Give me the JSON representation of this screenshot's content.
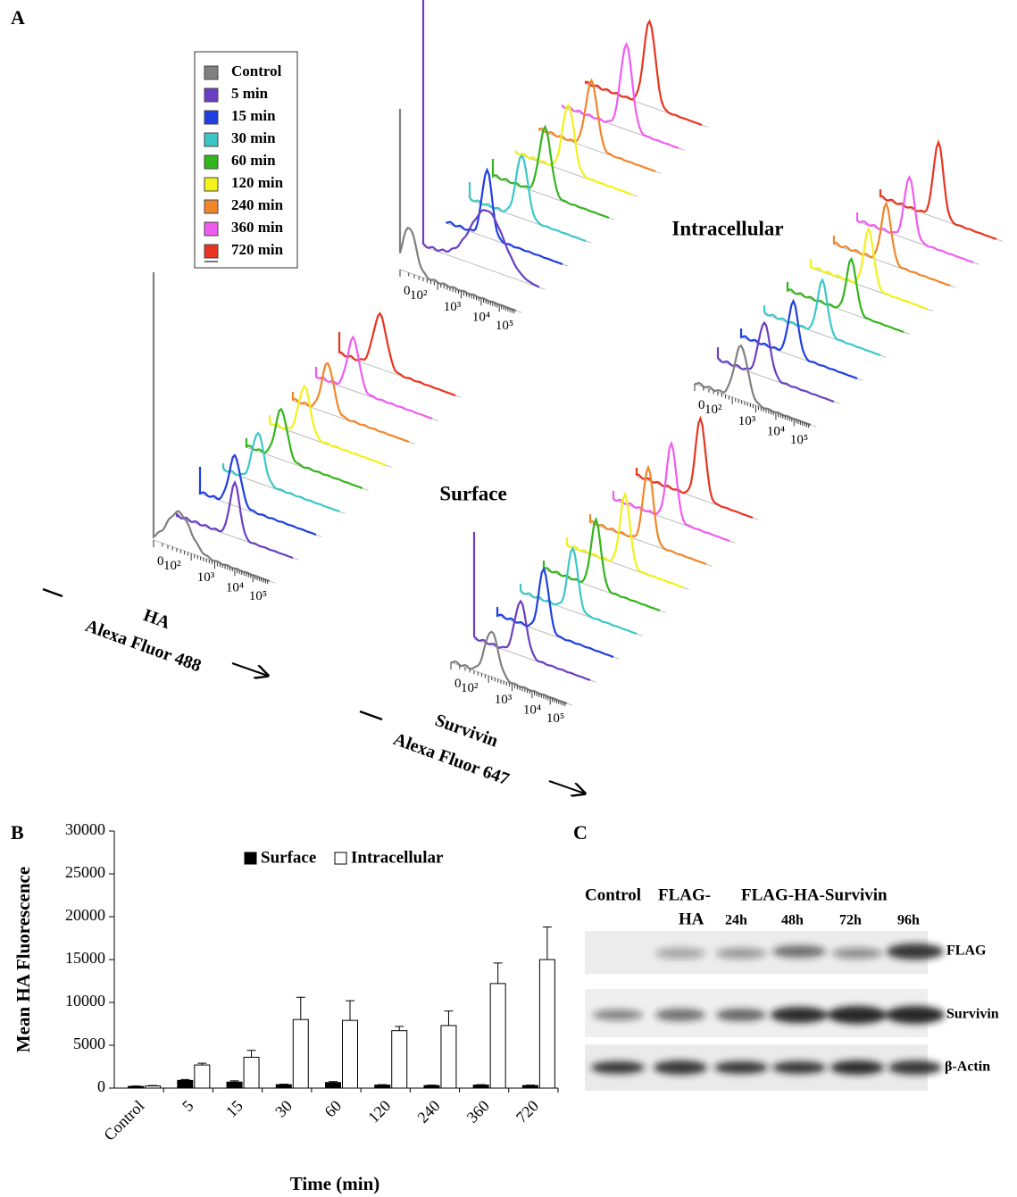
{
  "panel_a": {
    "label": "A",
    "legend": [
      {
        "name": "Control",
        "color": "#808080"
      },
      {
        "name": "5 min",
        "color": "#6a3fc4"
      },
      {
        "name": "15 min",
        "color": "#1f3fe0"
      },
      {
        "name": "30 min",
        "color": "#3cc7c7"
      },
      {
        "name": "60 min",
        "color": "#33b51c"
      },
      {
        "name": "120 min",
        "color": "#f2f21a"
      },
      {
        "name": "240 min",
        "color": "#f0862a"
      },
      {
        "name": "360 min",
        "color": "#f05cf0"
      },
      {
        "name": "720 min",
        "color": "#e83420"
      }
    ],
    "log_ticks": [
      "0",
      "10²",
      "10³",
      "10⁴",
      "10⁵"
    ],
    "region_labels": [
      "Surface",
      "Intracellular"
    ],
    "axis_labels": [
      {
        "marker": "HA",
        "dye": "Alexa Fluor 488"
      },
      {
        "marker": "Survivin",
        "dye": "Alexa Fluor 647"
      }
    ]
  },
  "chart_data": {
    "type": "bar",
    "panel_label": "B",
    "categories": [
      "Control",
      "5",
      "15",
      "30",
      "60",
      "120",
      "240",
      "360",
      "720"
    ],
    "series": [
      {
        "name": "Surface",
        "color": "#000000",
        "values": [
          200,
          900,
          700,
          400,
          650,
          350,
          300,
          350,
          300
        ],
        "errors": [
          50,
          100,
          150,
          60,
          100,
          50,
          50,
          50,
          50
        ]
      },
      {
        "name": "Intracellular",
        "color": "#ffffff",
        "values": [
          250,
          2700,
          3600,
          8000,
          7900,
          6700,
          7300,
          12200,
          15000
        ],
        "errors": [
          50,
          200,
          800,
          2600,
          2300,
          500,
          1700,
          2400,
          3800
        ]
      }
    ],
    "ylim": [
      0,
      30000
    ],
    "yticks": [
      0,
      5000,
      10000,
      15000,
      20000,
      25000,
      30000
    ],
    "ylabel": "Mean HA Fluorescence",
    "xlabel": "Time (min)"
  },
  "panel_c": {
    "label": "C",
    "header": {
      "control": "Control",
      "flag_ha": [
        "FLAG-",
        "HA"
      ],
      "group": "FLAG-HA-Survivin",
      "times": [
        "24h",
        "48h",
        "72h",
        "96h"
      ]
    },
    "rows": [
      "FLAG",
      "Survivin",
      "β-Actin"
    ]
  }
}
